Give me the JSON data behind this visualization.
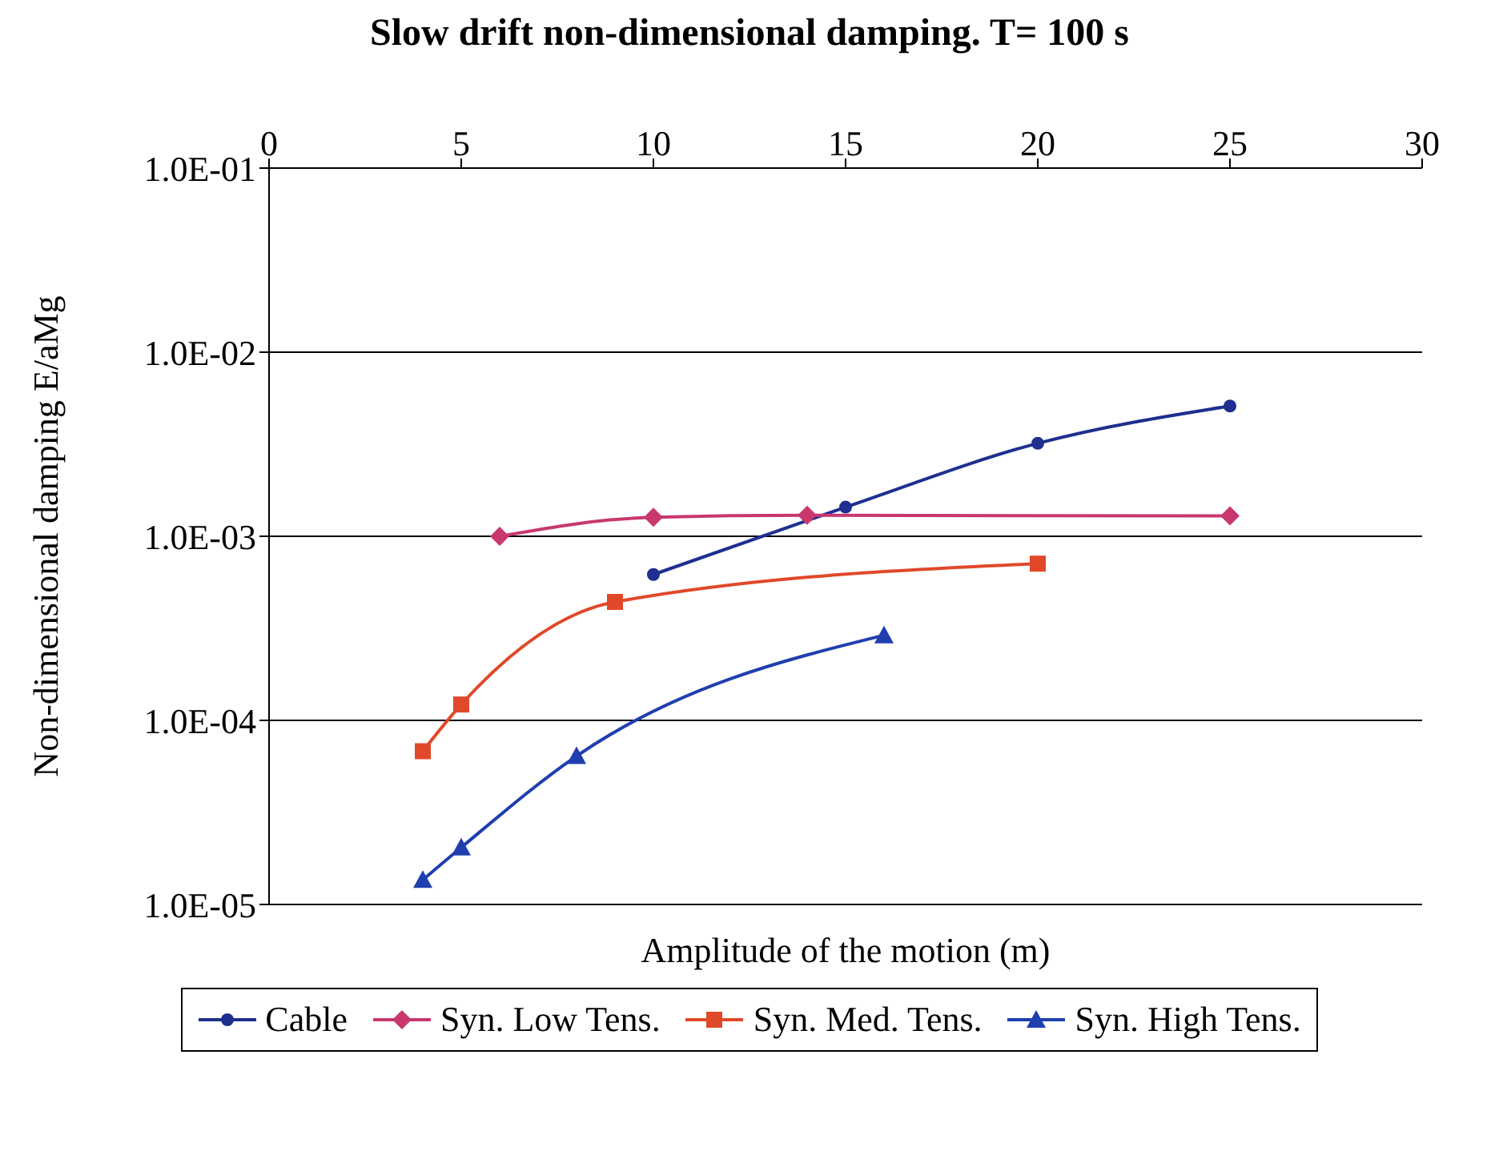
{
  "chart_data": {
    "type": "line",
    "title": "Slow drift non-dimensional damping. T= 100 s",
    "xlabel": "Amplitude of the motion (m)",
    "ylabel": "Non-dimensional damping E/aMg",
    "log": "y",
    "grid": "y",
    "legend": "bottom",
    "line_style": "solid",
    "xlim": [
      0,
      30
    ],
    "xticks": [
      0,
      5,
      10,
      15,
      20,
      25,
      30
    ],
    "ylim": [
      1e-05,
      0.1
    ],
    "yticks": [
      {
        "value": 1e-05,
        "label": "1.0E-05"
      },
      {
        "value": 0.0001,
        "label": "1.0E-04"
      },
      {
        "value": 0.001,
        "label": "1.0E-03"
      },
      {
        "value": 0.01,
        "label": "1.0E-02"
      },
      {
        "value": 0.1,
        "label": "1.0E-01"
      }
    ],
    "series": [
      {
        "name": "Cable",
        "color": "#1f2f8f",
        "marker": "circle",
        "x": [
          10,
          15,
          20,
          25
        ],
        "values": [
          0.00062,
          0.00144,
          0.0032,
          0.0051
        ]
      },
      {
        "name": "Syn. Low Tens.",
        "color": "#c8386e",
        "marker": "diamond",
        "x": [
          6,
          10,
          14,
          25
        ],
        "values": [
          0.001,
          0.00127,
          0.0013,
          0.00129
        ]
      },
      {
        "name": "Syn. Med. Tens.",
        "color": "#e0482a",
        "marker": "square",
        "x": [
          4,
          5,
          9,
          20
        ],
        "values": [
          6.8e-05,
          0.000122,
          0.00044,
          0.00071
        ]
      },
      {
        "name": "Syn. High Tens.",
        "color": "#1f3faf",
        "marker": "triangle",
        "x": [
          4,
          5,
          8,
          16
        ],
        "values": [
          1.36e-05,
          2.04e-05,
          6.4e-05,
          0.00029
        ]
      }
    ]
  }
}
